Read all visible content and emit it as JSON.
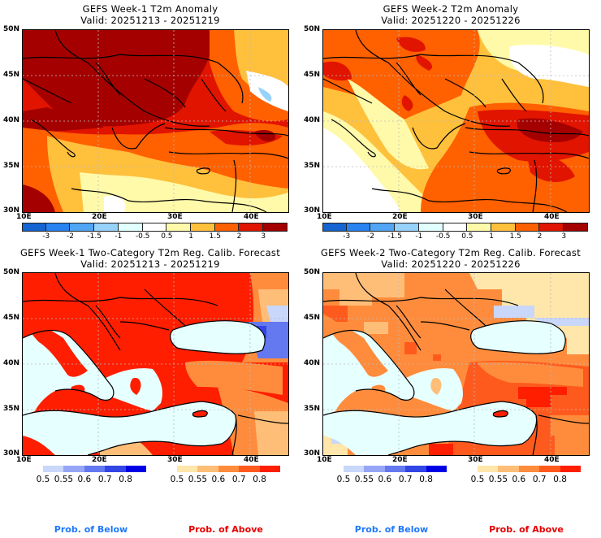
{
  "panels": [
    {
      "id": "week1-anomaly",
      "title": "GEFS Week-1 T2m Anomaly",
      "valid": "Valid: 20251213 - 20251219",
      "type": "anomaly"
    },
    {
      "id": "week2-anomaly",
      "title": "GEFS Week-2 T2m Anomaly",
      "valid": "Valid: 20251220 - 20251226",
      "type": "anomaly"
    },
    {
      "id": "week1-prob",
      "title": "GEFS Week-1 Two-Category T2m Reg. Calib. Forecast",
      "valid": "Valid: 20251213 - 20251219",
      "type": "probability"
    },
    {
      "id": "week2-prob",
      "title": "GEFS Week-2 Two-Category T2m Reg. Calib. Forecast",
      "valid": "Valid: 20251220 - 20251226",
      "type": "probability"
    }
  ],
  "axes": {
    "lat_labels": [
      "50N",
      "45N",
      "40N",
      "35N",
      "30N"
    ],
    "lon_labels": [
      "10E",
      "20E",
      "30E",
      "40E"
    ]
  },
  "anomaly_colorbar": {
    "colors": [
      "#1464d2",
      "#2882f0",
      "#50a5f5",
      "#96d2fa",
      "#e1ffff",
      "#ffffff",
      "#fffaaa",
      "#ffc03c",
      "#ff6000",
      "#e11400",
      "#a50000"
    ],
    "labels": [
      "-3",
      "-2",
      "-1.5",
      "-1",
      "-0.5",
      "0.5",
      "1",
      "1.5",
      "2",
      "3"
    ]
  },
  "below_colorbar": {
    "colors": [
      "#c8d7fa",
      "#96a5f5",
      "#6478f0",
      "#3246e6",
      "#0000e6"
    ],
    "labels": [
      "0.5",
      "0.55",
      "0.6",
      "0.7",
      "0.8"
    ],
    "title": "Prob. of Below",
    "title_color": "#1e78ff"
  },
  "above_colorbar": {
    "colors": [
      "#ffe6aa",
      "#ffbe78",
      "#ff8c3c",
      "#ff5a1e",
      "#ff1e00"
    ],
    "labels": [
      "0.5",
      "0.55",
      "0.6",
      "0.7",
      "0.8"
    ],
    "title": "Prob. of Above",
    "title_color": "#e60000"
  },
  "sea_color": "#e6ffff"
}
